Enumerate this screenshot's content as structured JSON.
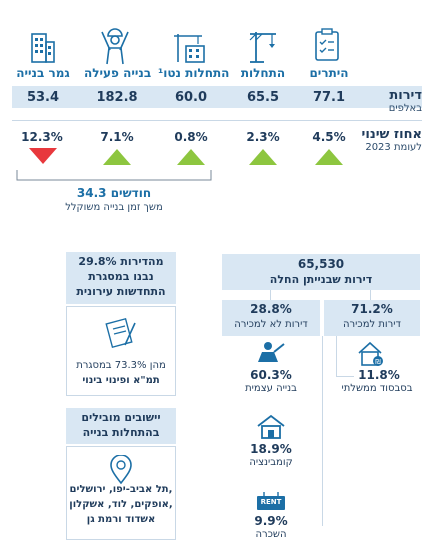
{
  "stats_table": {
    "columns": [
      {
        "id": "new-built",
        "label": "גמר בנייה",
        "dwellings": "53.4",
        "change": "12.3%",
        "direction": "down"
      },
      {
        "id": "active-construction",
        "label": "בנייה פעילה",
        "dwellings": "182.8",
        "change": "7.1%",
        "direction": "up"
      },
      {
        "id": "construction-starts",
        "label": "התחלות נטו¹",
        "dwellings": "60.0",
        "change": "0.8%",
        "direction": "up"
      },
      {
        "id": "starts",
        "label": "התחלות",
        "dwellings": "65.5",
        "change": "2.3%",
        "direction": "up"
      },
      {
        "id": "permits",
        "label": "היתרים",
        "dwellings": "77.1",
        "change": "4.5%",
        "direction": "up"
      }
    ],
    "row_dwellings_label": "דירות",
    "row_dwellings_sub": "באלפים",
    "row_change_label": "אחוז שינוי",
    "row_change_sub": "לעומת 2023",
    "duration_value": "34.3 חודשים",
    "duration_label": "משך זמן בנייה משוקלל"
  },
  "colors": {
    "up": "#8dc63f",
    "down": "#e8383d",
    "accent": "#1c6fa6",
    "band": "#d9e7f3",
    "dark": "#1f3b5b"
  },
  "tree": {
    "total_value": "65,530",
    "total_label": "דירות שבנייתן החלה",
    "sale_pct": "71.2%",
    "sale_label": "דירות למכירה",
    "nonsale_pct": "28.8%",
    "nonsale_label": "דירות לא למכירה",
    "subsidized_pct": "11.8%",
    "subsidized_label": "בסבסוד ממשלתי",
    "self_build_pct": "60.3%",
    "self_build_label": "בנייה עצמית",
    "combination_pct": "18.9%",
    "combination_label": "קומבינציה",
    "rent_pct": "9.9%",
    "rent_label": "השכרה",
    "rent_icon_text": "RENT"
  },
  "side": {
    "urban_title": "29.8% מהדירות נבנו במסגרת התחדשות עירונית",
    "urban_title_l1": "29.8% מהדירות",
    "urban_title_l2": "נבנו במסגרת",
    "urban_title_l3": "התחדשות עירונית",
    "urban_sub_l1": "מהן 73.3% במסגרת",
    "urban_sub_l2": "תמ\"א ופינוי בינוי",
    "cities_title_l1": "יישובים מובילים",
    "cities_title_l2": "בהתחלות בנייה",
    "cities_l1": "תל אביב-יפו, ירושלים,",
    "cities_l2": "אופקים, לוד, אשקלון,",
    "cities_l3": "אשדוד ורמת גן"
  },
  "chart_data": {
    "type": "table",
    "title": "",
    "categories": [
      "היתרים",
      "התחלות",
      "התחלות נטו¹",
      "בנייה פעילה",
      "גמר בנייה"
    ],
    "series": [
      {
        "name": "דירות (באלפים)",
        "values": [
          77.1,
          65.5,
          60.0,
          182.8,
          53.4
        ]
      },
      {
        "name": "אחוז שינוי לעומת 2023",
        "values": [
          4.5,
          2.3,
          0.8,
          7.1,
          -12.3
        ]
      }
    ],
    "breakdown": {
      "total_dwellings_started": 65530,
      "for_sale_pct": 71.2,
      "not_for_sale_pct": 28.8,
      "subsidized_pct": 11.8,
      "self_build_pct": 60.3,
      "combination_pct": 18.9,
      "rent_pct": 9.9,
      "urban_renewal_pct": 29.8,
      "tama_pinui_pct": 73.3,
      "weighted_construction_months": 34.3
    }
  }
}
